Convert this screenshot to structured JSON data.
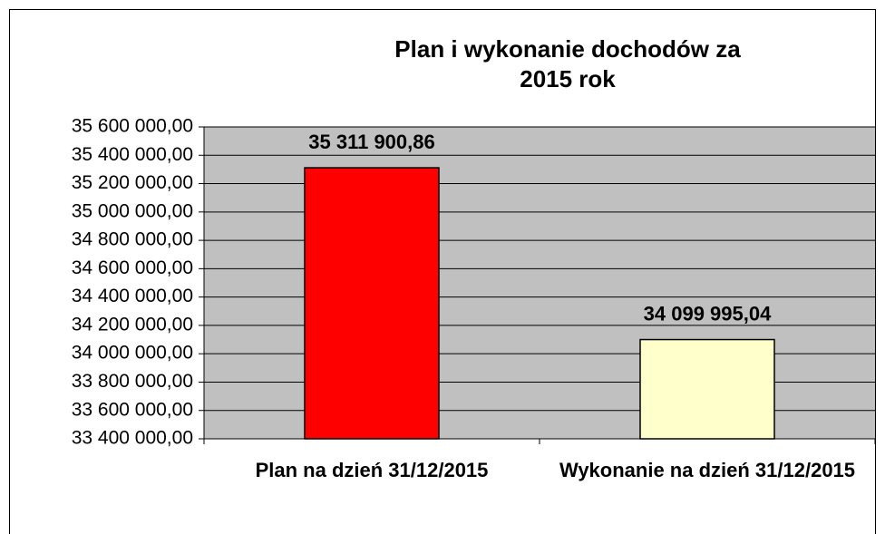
{
  "chart_data": {
    "type": "bar",
    "title": "Plan i wykonanie dochodów za 2015 rok",
    "categories": [
      "Plan na dzień 31/12/2015",
      "Wykonanie na dzień 31/12/2015"
    ],
    "values": [
      35311900.86,
      34099995.04
    ],
    "value_labels": [
      "35 311 900,86",
      "34 099 995,04"
    ],
    "colors": [
      "#ff0000",
      "#ffffcc"
    ],
    "ylim": [
      33400000,
      35600000
    ],
    "yticks": [
      {
        "value": 33400000,
        "label": "33 400 000,00"
      },
      {
        "value": 33600000,
        "label": "33 600 000,00"
      },
      {
        "value": 33800000,
        "label": "33 800 000,00"
      },
      {
        "value": 34000000,
        "label": "34 000 000,00"
      },
      {
        "value": 34200000,
        "label": "34 200 000,00"
      },
      {
        "value": 34400000,
        "label": "34 400 000,00"
      },
      {
        "value": 34600000,
        "label": "34 600 000,00"
      },
      {
        "value": 34800000,
        "label": "34 800 000,00"
      },
      {
        "value": 35000000,
        "label": "35 000 000,00"
      },
      {
        "value": 35200000,
        "label": "35 200 000,00"
      },
      {
        "value": 35400000,
        "label": "35 400 000,00"
      },
      {
        "value": 35600000,
        "label": "35 600 000,00"
      }
    ],
    "grid": true
  }
}
